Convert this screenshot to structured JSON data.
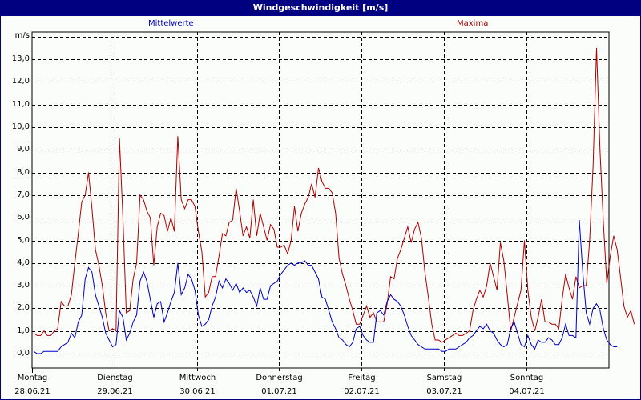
{
  "window": {
    "title": "Windgeschwindigkeit [m/s]"
  },
  "legend": {
    "mean_label": "Mittelwerte",
    "max_label": "Maxima"
  },
  "colors": {
    "titlebar": "#000080",
    "mean": "#0000c8",
    "max": "#b00000",
    "grid": "#000000",
    "background": "#fbfdfb"
  },
  "chart_data": {
    "type": "line",
    "title": "Windgeschwindigkeit [m/s]",
    "xlabel": "",
    "ylabel": "m/s",
    "ylim": [
      -0.7,
      14.0
    ],
    "grid": true,
    "legend_position": "top",
    "y_ticks": [
      "13,0",
      "12,0",
      "11,0",
      "10,0",
      "9,0",
      "8,0",
      "7,0",
      "6,0",
      "5,0",
      "4,0",
      "3,0",
      "2,0",
      "1,0",
      "0,0"
    ],
    "categories": [
      {
        "day": "Montag",
        "date": "28.06.21"
      },
      {
        "day": "Dienstag",
        "date": "29.06.21"
      },
      {
        "day": "Mittwoch",
        "date": "30.06.21"
      },
      {
        "day": "Donnerstag",
        "date": "01.07.21"
      },
      {
        "day": "Freitag",
        "date": "02.07.21"
      },
      {
        "day": "Samstag",
        "date": "03.07.21"
      },
      {
        "day": "Sonntag",
        "date": "04.07.21"
      }
    ],
    "x_unit": "hour since Montag 28.06.21 00:00",
    "series": [
      {
        "name": "Maxima",
        "values": [
          0.9,
          0.8,
          0.8,
          1.0,
          0.8,
          0.8,
          1.0,
          1.1,
          2.3,
          2.1,
          2.1,
          2.6,
          4.0,
          5.3,
          6.7,
          7.0,
          8.0,
          6.4,
          4.6,
          3.9,
          3.0,
          1.8,
          1.0,
          1.1,
          1.0,
          9.5,
          6.0,
          1.8,
          1.9,
          3.3,
          4.0,
          7.0,
          6.8,
          6.3,
          6.0,
          3.9,
          5.6,
          6.2,
          6.1,
          5.4,
          6.0,
          5.4,
          9.6,
          6.8,
          6.4,
          6.8,
          6.8,
          6.5,
          5.4,
          4.5,
          2.5,
          2.7,
          3.4,
          3.4,
          4.3,
          5.3,
          5.2,
          5.8,
          5.9,
          7.3,
          6.3,
          5.2,
          5.6,
          5.1,
          6.8,
          5.2,
          6.2,
          5.6,
          5.0,
          5.7,
          5.5,
          4.7,
          4.7,
          4.8,
          4.4,
          5.0,
          6.5,
          5.4,
          6.2,
          6.6,
          6.9,
          7.5,
          6.9,
          8.2,
          7.6,
          7.3,
          7.3,
          7.1,
          6.2,
          4.2,
          3.5,
          3.0,
          2.4,
          1.9,
          1.3,
          1.3,
          1.7,
          2.1,
          1.6,
          1.8,
          1.4,
          1.4,
          1.4,
          2.2,
          3.4,
          3.3,
          4.2,
          4.6,
          5.1,
          5.6,
          4.9,
          5.5,
          5.8,
          5.1,
          3.6,
          2.5,
          1.3,
          0.6,
          0.6,
          0.5,
          0.6,
          0.7,
          0.8,
          0.9,
          0.8,
          0.8,
          0.9,
          1.0,
          1.9,
          2.4,
          2.8,
          2.5,
          3.0,
          4.0,
          3.4,
          2.8,
          4.9,
          4.1,
          2.6,
          1.0,
          1.6,
          2.2,
          2.8,
          5.0,
          2.8,
          1.6,
          1.0,
          1.6,
          2.4,
          1.4,
          1.4,
          1.3,
          1.3,
          1.1,
          2.4,
          3.5,
          2.9,
          2.4,
          3.4,
          2.9,
          3.0,
          3.0,
          5.0,
          8.3,
          13.5,
          9.0,
          5.8,
          3.1,
          4.3,
          5.2,
          4.6,
          3.4,
          2.1,
          1.6,
          1.9,
          1.3
        ]
      },
      {
        "name": "Mittelwerte",
        "values": [
          0.1,
          0.0,
          0.0,
          0.1,
          0.1,
          0.1,
          0.1,
          0.1,
          0.3,
          0.4,
          0.5,
          0.9,
          0.7,
          1.4,
          1.7,
          3.3,
          3.8,
          3.6,
          2.6,
          2.1,
          1.6,
          0.9,
          0.6,
          0.3,
          0.4,
          1.9,
          1.6,
          0.6,
          0.9,
          1.4,
          1.7,
          3.2,
          3.6,
          3.2,
          2.4,
          1.6,
          2.2,
          2.3,
          1.4,
          1.8,
          2.3,
          2.7,
          4.0,
          2.6,
          2.9,
          3.5,
          3.3,
          2.8,
          1.7,
          1.2,
          1.3,
          1.5,
          2.1,
          2.5,
          3.2,
          2.9,
          3.3,
          3.1,
          2.8,
          3.1,
          2.7,
          2.9,
          2.7,
          2.8,
          2.5,
          2.1,
          2.9,
          2.4,
          2.4,
          3.0,
          3.1,
          3.2,
          3.5,
          3.7,
          3.9,
          4.0,
          3.9,
          4.0,
          4.0,
          4.1,
          3.9,
          3.9,
          3.6,
          3.3,
          2.5,
          2.4,
          1.9,
          1.4,
          1.1,
          0.7,
          0.6,
          0.4,
          0.3,
          0.5,
          1.1,
          1.2,
          0.8,
          0.6,
          0.5,
          0.5,
          1.8,
          1.9,
          1.7,
          2.3,
          2.6,
          2.4,
          2.3,
          2.1,
          1.7,
          1.2,
          0.8,
          0.6,
          0.4,
          0.3,
          0.2,
          0.2,
          0.2,
          0.2,
          0.2,
          0.1,
          0.1,
          0.2,
          0.2,
          0.2,
          0.3,
          0.4,
          0.5,
          0.7,
          0.8,
          1.0,
          1.2,
          1.1,
          1.3,
          1.0,
          0.9,
          0.6,
          0.4,
          0.3,
          0.4,
          1.1,
          1.4,
          0.9,
          0.4,
          0.3,
          0.8,
          0.4,
          0.2,
          0.6,
          0.5,
          0.5,
          0.7,
          0.6,
          0.4,
          0.4,
          0.7,
          1.3,
          0.8,
          0.8,
          0.7,
          5.9,
          3.6,
          1.8,
          1.3,
          2.0,
          2.2,
          1.9,
          1.1,
          0.6,
          0.4,
          0.3,
          0.3
        ]
      }
    ]
  }
}
